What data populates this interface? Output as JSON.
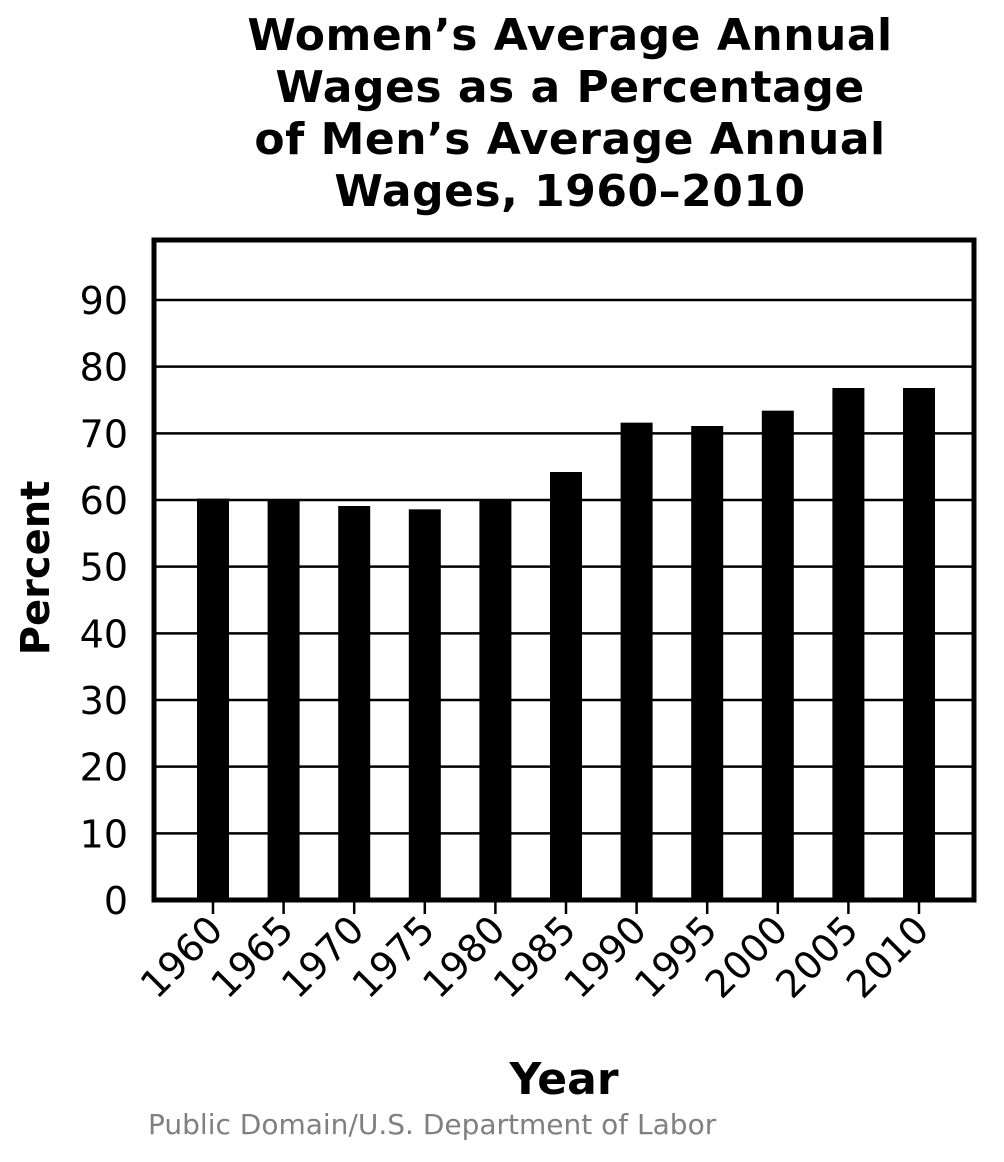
{
  "chart_data": {
    "type": "bar",
    "title_lines": [
      "Women’s Average Annual",
      "Wages as a Percentage",
      "of Men’s Average Annual",
      "Wages, 1960–2010"
    ],
    "xlabel": "Year",
    "ylabel": "Percent",
    "categories": [
      "1960",
      "1965",
      "1970",
      "1975",
      "1980",
      "1985",
      "1990",
      "1995",
      "2000",
      "2005",
      "2010"
    ],
    "values": [
      60.2,
      60.0,
      59.1,
      58.6,
      60.0,
      64.2,
      71.6,
      71.1,
      73.4,
      76.8,
      76.8
    ],
    "ylim": [
      0,
      99
    ],
    "yticks": [
      "0",
      "10",
      "20",
      "30",
      "40",
      "50",
      "60",
      "70",
      "80",
      "90"
    ],
    "grid": true,
    "bar_color": "#000000"
  },
  "credit": "Public Domain/U.S. Department of Labor"
}
